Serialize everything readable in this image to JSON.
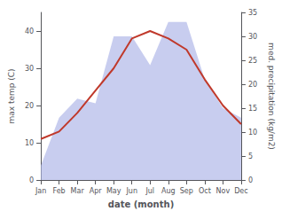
{
  "chart_data": {
    "type": "line",
    "categories": [
      "Jan",
      "Feb",
      "Mar",
      "Apr",
      "May",
      "Jun",
      "Jul",
      "Aug",
      "Sep",
      "Oct",
      "Nov",
      "Dec"
    ],
    "xlabel": "date (month)",
    "ylabel": "max temp (C)",
    "y2label": "med. precipitation (kg/m2)",
    "series": [
      {
        "type": "area",
        "color": "#b0b8e8",
        "axis": "y2",
        "values": [
          3,
          13,
          17,
          16,
          30,
          30,
          24,
          33,
          33,
          21,
          15,
          13
        ]
      },
      {
        "type": "line",
        "color": "#c0392b",
        "values": [
          11,
          13,
          18,
          24,
          30,
          38,
          40,
          38,
          35,
          27,
          20,
          15
        ]
      }
    ],
    "ylim": [
      0,
      45
    ],
    "yticks": [
      0,
      10,
      20,
      30,
      40
    ],
    "y2lim": [
      0,
      35
    ],
    "y2ticks": [
      0,
      5,
      10,
      15,
      20,
      25,
      30,
      35
    ],
    "grid": false
  }
}
